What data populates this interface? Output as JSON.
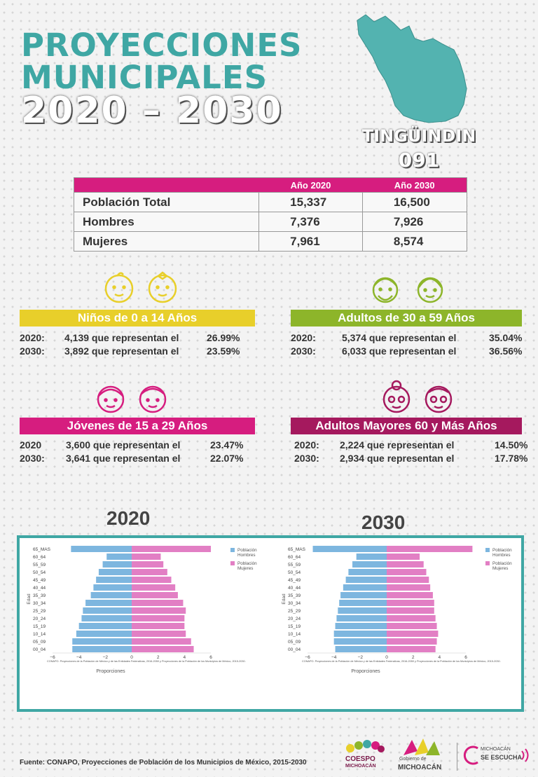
{
  "header": {
    "line1": "PROYECCIONES",
    "line2": "MUNICIPALES",
    "years": "2020 – 2030",
    "municipio": "TINGÜINDIN",
    "clave": "091"
  },
  "table": {
    "col1": "Año 2020",
    "col2": "Año 2030",
    "rows": [
      {
        "label": "Población Total",
        "v2020": "15,337",
        "v2030": "16,500"
      },
      {
        "label": "Hombres",
        "v2020": "7,376",
        "v2030": "7,926"
      },
      {
        "label": "Mujeres",
        "v2020": "7,961",
        "v2030": "8,574"
      }
    ]
  },
  "groups": {
    "ninos": {
      "title": "Niños de 0 a 14 Años",
      "y1": "2020:",
      "t1": "4,139 que representan el",
      "p1": "26.99%",
      "y2": "2030:",
      "t2": "3,892 que representan el",
      "p2": "23.59%",
      "color": "#e8cf2a"
    },
    "adultos": {
      "title": "Adultos de 30 a 59 Años",
      "y1": "2020:",
      "t1": "5,374 que representan el",
      "p1": "35.04%",
      "y2": "2030:",
      "t2": "6,033 que representan el",
      "p2": "36.56%",
      "color": "#8db52a"
    },
    "jovenes": {
      "title": "Jóvenes de 15 a 29 Años",
      "y1": "2020",
      "t1": "3,600 que representan el",
      "p1": "23.47%",
      "y2": "2030:",
      "t2": "3,641 que representan el",
      "p2": "22.07%",
      "color": "#d61d7f"
    },
    "mayores": {
      "title": "Adultos Mayores  60 y Más Años",
      "y1": "2020:",
      "t1": "2,224 que representan el",
      "p1": "14.50%",
      "y2": "2030:",
      "t2": "2,934 que representan el",
      "p2": "17.78%",
      "color": "#a5195e"
    }
  },
  "charts": {
    "year1": "2020",
    "year2": "2030"
  },
  "chart_data": [
    {
      "type": "bar",
      "orientation": "horizontal",
      "categories": [
        "00_04",
        "05_09",
        "10_14",
        "15_19",
        "20_24",
        "25_29",
        "30_34",
        "35_39",
        "40_44",
        "45_49",
        "50_54",
        "55_59",
        "60_64",
        "65_MAS"
      ],
      "series": [
        {
          "name": "Hombres",
          "values": [
            -4.5,
            -4.5,
            -4.2,
            -4.0,
            -3.8,
            -3.7,
            -3.5,
            -3.1,
            -2.9,
            -2.7,
            -2.5,
            -2.2,
            -1.9,
            -4.6
          ]
        },
        {
          "name": "Mujeres",
          "values": [
            4.7,
            4.5,
            4.1,
            4.0,
            4.0,
            4.1,
            3.9,
            3.5,
            3.3,
            3.0,
            2.7,
            2.4,
            2.2,
            6.0
          ]
        }
      ],
      "xlabel": "Proporciones",
      "ylabel": "Edad",
      "legend_title": "Población",
      "xticks": [
        "−6",
        "−4",
        "−2",
        "0",
        "2",
        "4",
        "6"
      ],
      "xlim": [
        -6,
        6
      ],
      "source_note": "CONAPO. Proyecciones de la Población de México y de las Entidades Federativas, 2016-2050 y Proyecciones de la Población de los Municipios de México, 2015-2030.",
      "colors": {
        "Hombres": "#7db6df",
        "Mujeres": "#e27fc4"
      }
    },
    {
      "type": "bar",
      "orientation": "horizontal",
      "categories": [
        "00_04",
        "05_09",
        "10_14",
        "15_19",
        "20_24",
        "25_29",
        "30_34",
        "35_39",
        "40_44",
        "45_49",
        "50_54",
        "55_59",
        "60_64",
        "65_MAS"
      ],
      "series": [
        {
          "name": "Hombres",
          "values": [
            -3.9,
            -4.0,
            -4.0,
            -3.9,
            -3.8,
            -3.7,
            -3.6,
            -3.5,
            -3.3,
            -3.1,
            -2.9,
            -2.6,
            -2.3,
            -5.6
          ]
        },
        {
          "name": "Mujeres",
          "values": [
            3.7,
            3.8,
            3.9,
            3.8,
            3.7,
            3.6,
            3.6,
            3.5,
            3.3,
            3.2,
            3.0,
            2.8,
            2.5,
            6.5
          ]
        }
      ],
      "xlabel": "Proporciones",
      "ylabel": "Edad",
      "legend_title": "Población",
      "xticks": [
        "−6",
        "−4",
        "−2",
        "0",
        "2",
        "4",
        "6"
      ],
      "xlim": [
        -6,
        6
      ],
      "source_note": "CONAPO. Proyecciones de la Población de México y de las Entidades Federativas, 2016-2050 y Proyecciones de la Población de los Municipios de México, 2015-2030.",
      "colors": {
        "Hombres": "#7db6df",
        "Mujeres": "#e27fc4"
      }
    }
  ],
  "footer": {
    "source": "Fuente: CONAPO, Proyecciones de Población de los Municipios de México, 2015-2030",
    "logo1_a": "COESPO",
    "logo1_b": "MICHOACÁN",
    "logo2_a": "Gobierno de",
    "logo2_b": "MICHOACÁN",
    "logo3_a": "MICHOACÁN",
    "logo3_b": "SE ESCUCHA"
  }
}
